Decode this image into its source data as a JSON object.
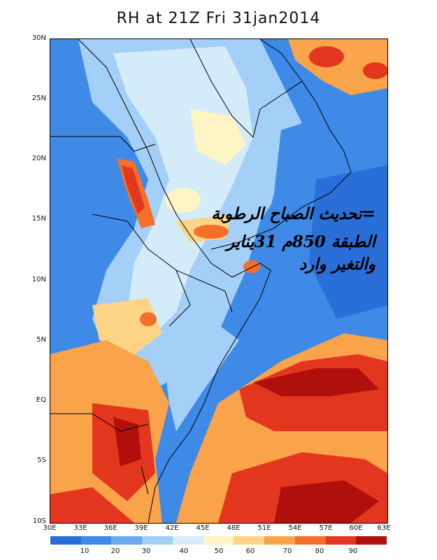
{
  "title": "RH at 21Z Fri 31jan2014",
  "y_ticks": [
    "30N",
    "25N",
    "20N",
    "15N",
    "10N",
    "5N",
    "EQ",
    "5S",
    "10S"
  ],
  "x_ticks": [
    "30E",
    "33E",
    "36E",
    "39E",
    "42E",
    "45E",
    "48E",
    "51E",
    "54E",
    "57E",
    "60E",
    "63E"
  ],
  "overlay_lines": [
    "=تحديث الصباح الرطوبة",
    "الطبقة 850م 31يناير",
    "والتغير وارد"
  ],
  "legend": {
    "colors": [
      "#2a6fd8",
      "#3f8ae6",
      "#6aaaf0",
      "#a4cff7",
      "#d4ecfa",
      "#fff5c4",
      "#fdd486",
      "#f9a34a",
      "#f46f2a",
      "#e2371e",
      "#b0100c"
    ],
    "labels": [
      "10",
      "20",
      "30",
      "40",
      "50",
      "60",
      "70",
      "80",
      "90"
    ]
  }
}
